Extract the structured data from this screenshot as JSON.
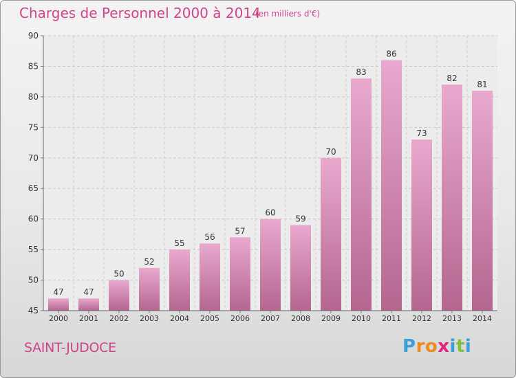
{
  "header": {
    "title": "Charges de Personnel 2000 à 2014",
    "unit": "(en milliers d'€)"
  },
  "footer": {
    "commune": "SAINT-JUDOCE",
    "logo_letters": [
      "P",
      "r",
      "o",
      "x",
      "i",
      "t",
      "i"
    ],
    "logo_colors": [
      "#3aa0d8",
      "#f08a1c",
      "#f08a1c",
      "#e0237c",
      "#3aa0d8",
      "#7cc242",
      "#3aa0d8"
    ]
  },
  "chart_data": {
    "type": "bar",
    "title": "Charges de Personnel 2000 à 2014",
    "subtitle": "(en milliers d'€)",
    "categories": [
      "2000",
      "2001",
      "2002",
      "2003",
      "2004",
      "2005",
      "2006",
      "2007",
      "2008",
      "2009",
      "2010",
      "2011",
      "2012",
      "2013",
      "2014"
    ],
    "values": [
      47,
      47,
      50,
      52,
      55,
      56,
      57,
      60,
      59,
      70,
      83,
      86,
      73,
      82,
      81
    ],
    "ylim": [
      45,
      90
    ],
    "yticks": [
      45,
      50,
      55,
      60,
      65,
      70,
      75,
      80,
      85,
      90
    ],
    "grid": true,
    "bar_color_top": "#e9a9cf",
    "bar_color_bottom": "#b4668f"
  }
}
